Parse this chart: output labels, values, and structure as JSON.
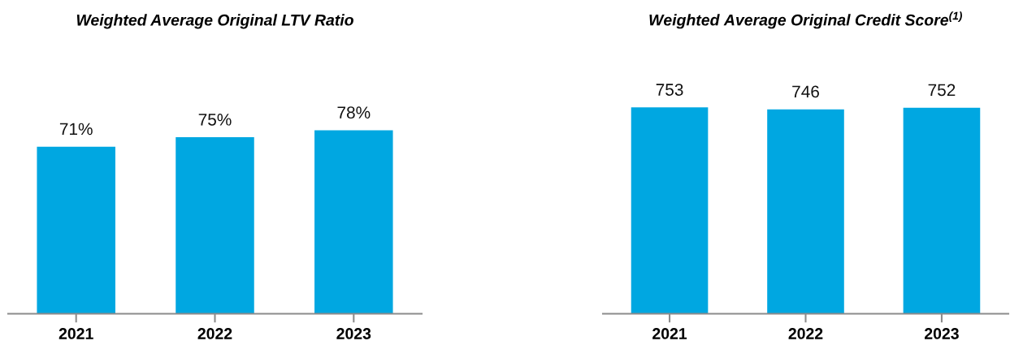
{
  "chart_data": [
    {
      "type": "bar",
      "title": "Weighted Average Original LTV Ratio",
      "categories": [
        "2021",
        "2022",
        "2023"
      ],
      "values": [
        71,
        75,
        78
      ],
      "value_labels": [
        "71%",
        "75%",
        "78%"
      ],
      "color": "#00a7e1",
      "tick_labels": "x"
    },
    {
      "type": "bar",
      "title": "Weighted Average Original Credit Score$^{(1)}$",
      "categories": [
        "2021",
        "2022",
        "2023"
      ],
      "values": [
        753,
        746,
        752
      ],
      "data_labels": true,
      "color": "#00a7e1",
      "tick_labels": "x"
    }
  ]
}
